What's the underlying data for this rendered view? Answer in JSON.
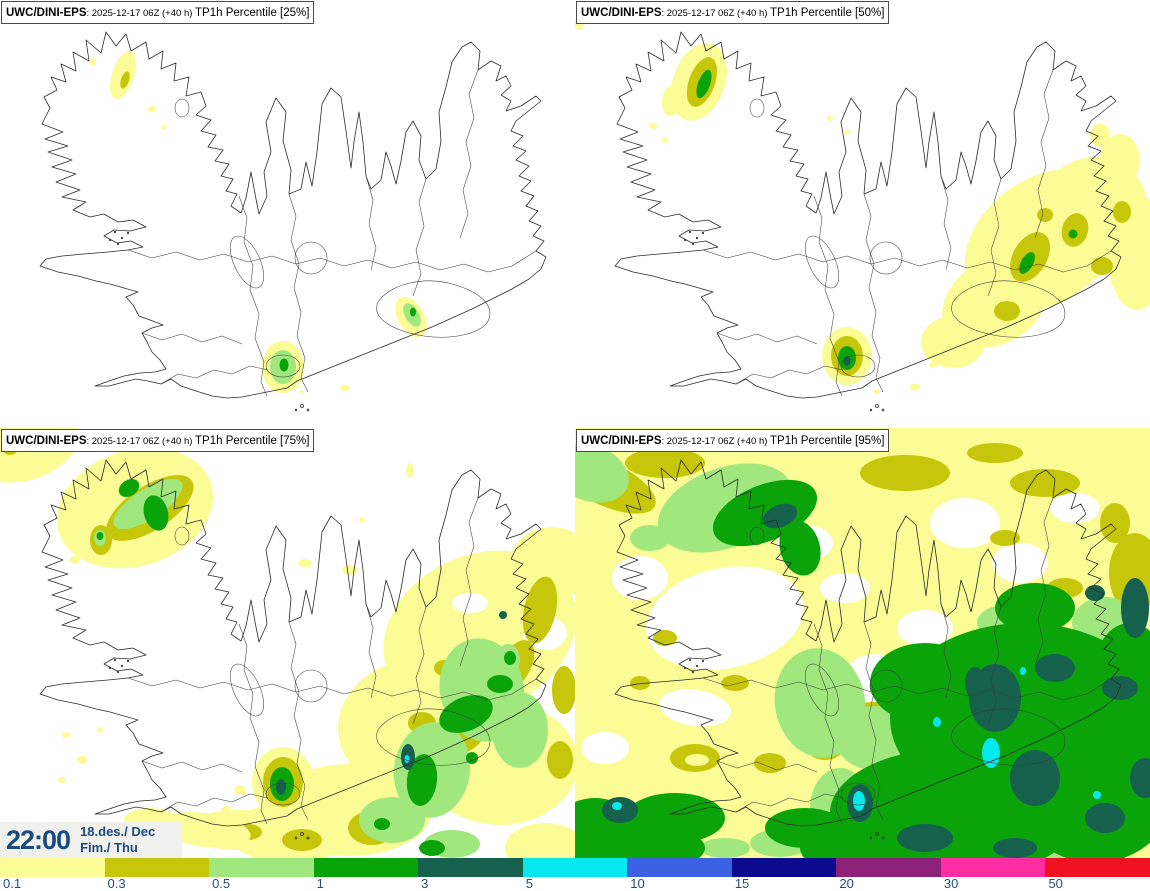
{
  "panels": [
    {
      "title_model": "UWC/DINI-EPS",
      "title_run": ": 2025-12-17 06Z (+40 h) ",
      "title_product": "TP1h Percentile [25%]"
    },
    {
      "title_model": "UWC/DINI-EPS",
      "title_run": ": 2025-12-17 06Z (+40 h) ",
      "title_product": "TP1h Percentile [50%]"
    },
    {
      "title_model": "UWC/DINI-EPS",
      "title_run": ": 2025-12-17 06Z (+40 h) ",
      "title_product": "TP1h Percentile [75%]"
    },
    {
      "title_model": "UWC/DINI-EPS",
      "title_run": ": 2025-12-17 06Z (+40 h) ",
      "title_product": "TP1h Percentile [95%]"
    }
  ],
  "timestamp": {
    "time": "22:00",
    "date_line1": "18.des./ Dec",
    "date_line2": "Fim./ Thu"
  },
  "scale": {
    "values": [
      "0.1",
      "0.3",
      "0.5",
      "1",
      "3",
      "5",
      "10",
      "15",
      "20",
      "30",
      "50"
    ],
    "colors": [
      "#FCFC96",
      "#C6C60A",
      "#A0E87E",
      "#0AA40A",
      "#16604E",
      "#06E8EE",
      "#3B62E2",
      "#0B0B8F",
      "#8C2177",
      "#FF2DA1",
      "#EF1220"
    ],
    "label_color": "#1F4E79"
  }
}
